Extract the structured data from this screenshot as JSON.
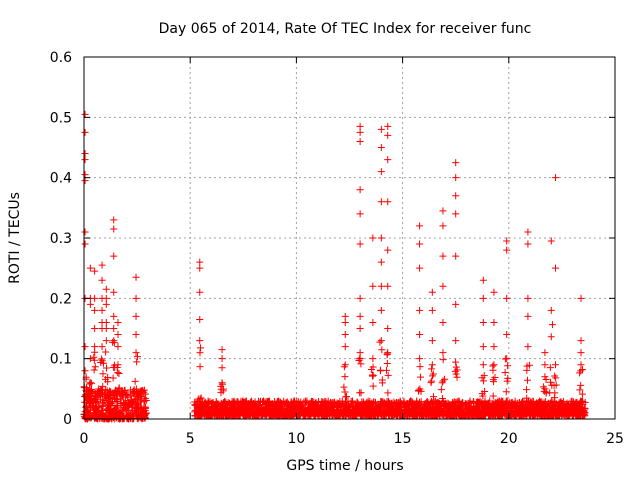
{
  "chart_data": {
    "type": "scatter",
    "title": "Day 065 of 2014, Rate Of TEC Index for receiver func",
    "xlabel": "GPS time / hours",
    "ylabel": "ROTI / TECUs",
    "xlim": [
      0,
      25
    ],
    "ylim": [
      0,
      0.6
    ],
    "x_ticks": [
      0,
      5,
      10,
      15,
      20,
      25
    ],
    "x_tick_labels": [
      "0",
      "5",
      "10",
      "15",
      "20",
      "25"
    ],
    "y_ticks": [
      0,
      0.1,
      0.2,
      0.3,
      0.4,
      0.5,
      0.6
    ],
    "y_tick_labels": [
      "0",
      "0.1",
      "0.2",
      "0.3",
      "0.4",
      "0.5",
      "0.6"
    ],
    "grid": true,
    "marker": "+",
    "marker_color": "#ff0000",
    "series": [
      {
        "name": "ROTI",
        "segments": [
          {
            "x_range": [
              0.0,
              2.95
            ],
            "baseline": [
              0.0,
              0.05
            ]
          },
          {
            "x_range": [
              5.2,
              23.6
            ],
            "baseline": [
              0.005,
              0.03
            ]
          }
        ],
        "spikes": [
          {
            "x": 0.05,
            "y_values": [
              0.505,
              0.475,
              0.44,
              0.43,
              0.405,
              0.395,
              0.31,
              0.29,
              0.2,
              0.12,
              0.08
            ]
          },
          {
            "x": 0.3,
            "y_values": [
              0.25,
              0.2,
              0.19,
              0.1,
              0.06
            ]
          },
          {
            "x": 0.5,
            "y_values": [
              0.245,
              0.2,
              0.18,
              0.15,
              0.12
            ]
          },
          {
            "x": 0.85,
            "y_values": [
              0.255,
              0.23,
              0.2,
              0.18,
              0.16,
              0.15,
              0.12
            ]
          },
          {
            "x": 1.05,
            "y_values": [
              0.215,
              0.2,
              0.19,
              0.16,
              0.15,
              0.13
            ]
          },
          {
            "x": 1.4,
            "y_values": [
              0.33,
              0.315,
              0.27,
              0.21,
              0.17,
              0.15,
              0.13
            ]
          },
          {
            "x": 1.6,
            "y_values": [
              0.16,
              0.14,
              0.12,
              0.09
            ]
          },
          {
            "x": 2.45,
            "y_values": [
              0.235,
              0.2,
              0.17,
              0.14,
              0.11
            ]
          },
          {
            "x": 5.45,
            "y_values": [
              0.26,
              0.25,
              0.21,
              0.165,
              0.13
            ]
          },
          {
            "x": 6.5,
            "y_values": [
              0.115,
              0.1,
              0.085,
              0.06
            ]
          },
          {
            "x": 12.3,
            "y_values": [
              0.17,
              0.16,
              0.14,
              0.12,
              0.09
            ]
          },
          {
            "x": 13.0,
            "y_values": [
              0.485,
              0.475,
              0.46,
              0.38,
              0.34,
              0.29,
              0.2,
              0.17,
              0.15,
              0.11
            ]
          },
          {
            "x": 13.6,
            "y_values": [
              0.3,
              0.22,
              0.16,
              0.1
            ]
          },
          {
            "x": 14.0,
            "y_values": [
              0.48,
              0.45,
              0.41,
              0.36,
              0.3,
              0.26,
              0.22,
              0.18,
              0.13
            ]
          },
          {
            "x": 14.3,
            "y_values": [
              0.485,
              0.47,
              0.43,
              0.36,
              0.28,
              0.22,
              0.15,
              0.11
            ]
          },
          {
            "x": 15.8,
            "y_values": [
              0.32,
              0.29,
              0.25,
              0.18,
              0.14,
              0.1
            ]
          },
          {
            "x": 16.4,
            "y_values": [
              0.21,
              0.18,
              0.13,
              0.09
            ]
          },
          {
            "x": 16.9,
            "y_values": [
              0.345,
              0.32,
              0.27,
              0.22,
              0.16,
              0.11
            ]
          },
          {
            "x": 17.5,
            "y_values": [
              0.425,
              0.4,
              0.37,
              0.34,
              0.27,
              0.19,
              0.13
            ]
          },
          {
            "x": 18.8,
            "y_values": [
              0.23,
              0.2,
              0.16,
              0.12,
              0.09
            ]
          },
          {
            "x": 19.3,
            "y_values": [
              0.21,
              0.16,
              0.12,
              0.09
            ]
          },
          {
            "x": 19.9,
            "y_values": [
              0.295,
              0.28,
              0.2,
              0.14,
              0.1
            ]
          },
          {
            "x": 20.9,
            "y_values": [
              0.31,
              0.29,
              0.2,
              0.17,
              0.12
            ]
          },
          {
            "x": 21.7,
            "y_values": [
              0.11,
              0.09,
              0.07
            ]
          },
          {
            "x": 22.0,
            "y_values": [
              0.295,
              0.18
            ]
          },
          {
            "x": 22.2,
            "y_values": [
              0.4,
              0.25,
              0.09
            ]
          },
          {
            "x": 23.4,
            "y_values": [
              0.2,
              0.13,
              0.11,
              0.09
            ]
          }
        ]
      }
    ]
  }
}
